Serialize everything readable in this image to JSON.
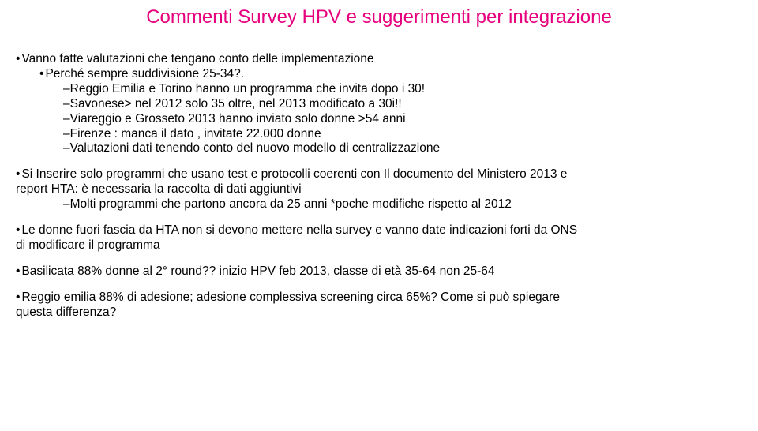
{
  "title": "Commenti Survey HPV e suggerimenti per integrazione",
  "colors": {
    "title": "#e6007e",
    "text": "#000000",
    "bg": "#ffffff"
  },
  "b1": {
    "l1": "Vanno fatte valutazioni che tengano conto delle implementazione",
    "l2": "Perché  sempre suddivisione 25-34?.",
    "l3": "Reggio Emilia e Torino hanno un programma che invita dopo i 30!",
    "l4": "Savonese> nel 2012 solo 35 oltre, nel 2013 modificato a 30i!!",
    "l5": "Viareggio e Grosseto 2013 hanno inviato solo donne >54 anni",
    "l6": "Firenze : manca il dato , invitate 22.000 donne",
    "l7": "Valutazioni dati tenendo conto del nuovo modello di centralizzazione"
  },
  "b2": {
    "l1a": "Si Inserire solo programmi che usano test e protocolli coerenti con Il documento del Ministero 2013 e",
    "l1b": " report HTA: è necessaria la raccolta di dati aggiuntivi",
    "l2": "Molti programmi che partono ancora da 25 anni *poche modifiche rispetto al 2012"
  },
  "b3": {
    "l1a": "Le donne fuori fascia da HTA non si devono mettere nella survey e vanno date indicazioni  forti da ONS",
    "l1b": " di modificare il programma"
  },
  "b4": {
    "l1": "Basilicata 88% donne al 2° round?? inizio HPV feb 2013, classe di età 35-64 non 25-64"
  },
  "b5": {
    "l1a": "Reggio emilia 88% di adesione; adesione complessiva screening  circa 65%? Come si può spiegare",
    "l1b": " questa differenza?"
  }
}
